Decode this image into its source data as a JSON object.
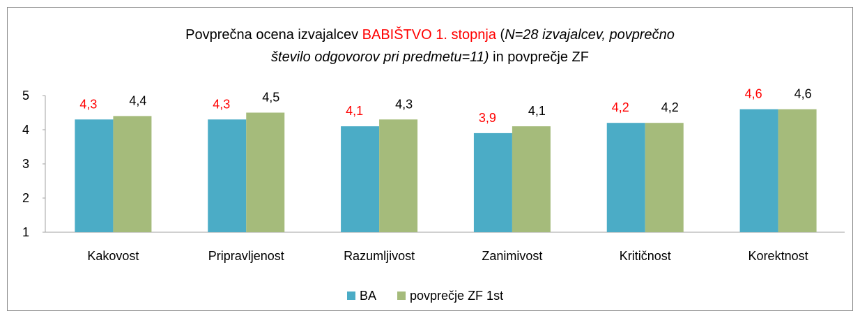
{
  "chart_data": {
    "type": "bar",
    "title": [
      [
        "Povprečna ocena izvajalcev ",
        "BABIŠTVO 1. stopnja",
        " (",
        "N=28 izvajalcev, povprečno"
      ],
      [
        "število odgovorov pri predmetu=11)",
        " in povprečje ZF"
      ]
    ],
    "categories": [
      "Kakovost",
      "Pripravljenost",
      "Razumljivost",
      "Zanimivost",
      "Kritičnost",
      "Korektnost"
    ],
    "series": [
      {
        "name": "BA",
        "color": "#4bacc6",
        "label_color": "#ff0000",
        "values": [
          4.3,
          4.3,
          4.1,
          3.9,
          4.2,
          4.6
        ],
        "value_labels": [
          "4,3",
          "4,3",
          "4,1",
          "3,9",
          "4,2",
          "4,6"
        ]
      },
      {
        "name": "povprečje ZF 1st",
        "color": "#a5bb7b",
        "label_color": "#000000",
        "values": [
          4.4,
          4.5,
          4.3,
          4.1,
          4.2,
          4.6
        ],
        "value_labels": [
          "4,4",
          "4,5",
          "4,3",
          "4,1",
          "4,2",
          "4,6"
        ]
      }
    ],
    "ylim": [
      1,
      5
    ],
    "yticks": [
      1,
      2,
      3,
      4,
      5
    ],
    "grid": false,
    "legend": "bottom"
  }
}
